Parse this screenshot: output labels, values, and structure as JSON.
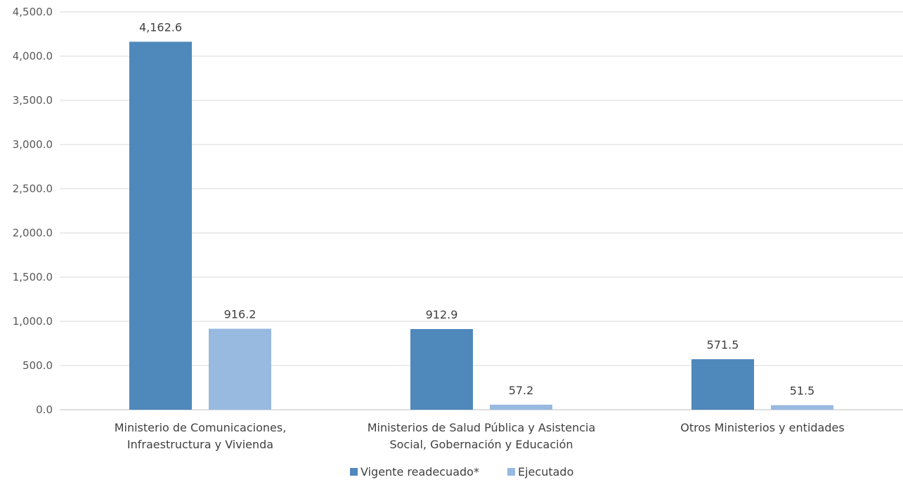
{
  "chart_data": {
    "type": "bar",
    "categories": [
      [
        "Ministerio de Comunicaciones,",
        "Infraestructura y Vivienda"
      ],
      [
        "Ministerios de Salud Pública y Asistencia",
        "Social, Gobernación y Educación"
      ],
      [
        "Otros Ministerios y entidades"
      ]
    ],
    "series": [
      {
        "name": "Vigente readecuado*",
        "color": "#4f88bb",
        "values": [
          4162.6,
          912.9,
          571.5
        ],
        "value_labels": [
          "4,162.6",
          "912.9",
          "571.5"
        ]
      },
      {
        "name": "Ejecutado",
        "color": "#98b9e0",
        "values": [
          916.2,
          57.2,
          51.5
        ],
        "value_labels": [
          "916.2",
          "57.2",
          "51.5"
        ]
      }
    ],
    "ylim": [
      0,
      4500
    ],
    "yticks": [
      0,
      500,
      1000,
      1500,
      2000,
      2500,
      3000,
      3500,
      4000,
      4500
    ],
    "ytick_labels": [
      "0.0",
      "500.0",
      "1,000.0",
      "1,500.0",
      "2,000.0",
      "2,500.0",
      "3,000.0",
      "3,500.0",
      "4,000.0",
      "4,500.0"
    ],
    "grid": true,
    "legend_position": "bottom"
  }
}
